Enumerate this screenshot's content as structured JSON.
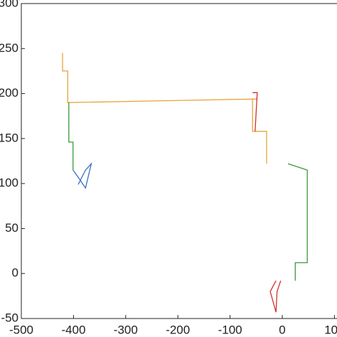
{
  "chart_data": {
    "type": "line",
    "xlim": [
      -500,
      100
    ],
    "ylim": [
      -50,
      300
    ],
    "xticks": [
      -500,
      -400,
      -300,
      -200,
      -100,
      0,
      100
    ],
    "yticks": [
      -50,
      0,
      50,
      100,
      150,
      200,
      250,
      300
    ],
    "series": [
      {
        "color": "#e8a33d",
        "x": [
          -421,
          -421,
          -411,
          -411,
          -405,
          -48,
          -57,
          -57,
          -30,
          -30
        ],
        "y": [
          245,
          225,
          225,
          190,
          190,
          194,
          194,
          158,
          158,
          122
        ]
      },
      {
        "color": "#3a9a3a",
        "x": [
          -409,
          -409,
          -401,
          -401,
          null,
          11,
          48,
          48,
          25,
          25
        ],
        "y": [
          190,
          146,
          146,
          115,
          null,
          122,
          115,
          12,
          12,
          -8
        ]
      },
      {
        "color": "#3a6fc4",
        "x": [
          -401,
          -391,
          -377,
          -366,
          -377,
          -391
        ],
        "y": [
          115,
          107,
          95,
          122,
          115,
          99
        ]
      },
      {
        "color": "#d03030",
        "x": [
          -3,
          -10,
          -12,
          -23,
          -12,
          null,
          -57,
          -48,
          -52
        ],
        "y": [
          -8,
          -20,
          -43,
          -20,
          -8,
          null,
          201,
          201,
          158
        ]
      }
    ]
  }
}
